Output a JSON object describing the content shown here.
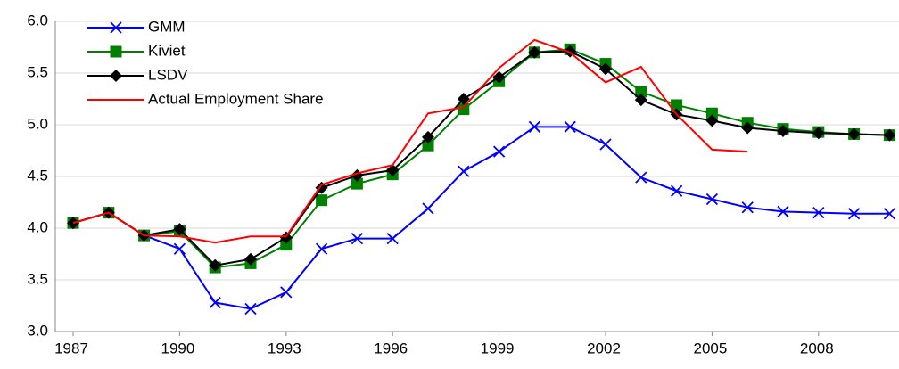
{
  "chart_data": {
    "type": "line",
    "categories": [
      "1987",
      null,
      null,
      "1990",
      null,
      null,
      "1993",
      null,
      null,
      "1996",
      null,
      null,
      "1999",
      null,
      null,
      "2002",
      null,
      null,
      "2005",
      null,
      null,
      "2008",
      null,
      null
    ],
    "series": [
      {
        "name": "GMM",
        "color": "#0000ff",
        "marker": "x",
        "values": [
          4.05,
          4.15,
          3.93,
          3.8,
          3.28,
          3.22,
          3.38,
          3.8,
          3.9,
          3.9,
          4.19,
          4.55,
          4.74,
          4.98,
          4.98,
          4.81,
          4.49,
          4.36,
          4.28,
          4.2,
          4.16,
          4.15,
          4.14,
          4.14
        ]
      },
      {
        "name": "Kiviet",
        "color": "#008000",
        "marker": "square",
        "values": [
          4.05,
          4.15,
          3.93,
          3.97,
          3.62,
          3.66,
          3.84,
          4.27,
          4.43,
          4.52,
          4.8,
          5.15,
          5.42,
          5.7,
          5.73,
          5.59,
          5.32,
          5.19,
          5.11,
          5.02,
          4.96,
          4.93,
          4.91,
          4.9
        ]
      },
      {
        "name": "LSDV",
        "color": "#000000",
        "marker": "diamond",
        "values": [
          4.05,
          4.15,
          3.93,
          3.99,
          3.64,
          3.7,
          3.91,
          4.39,
          4.51,
          4.56,
          4.88,
          5.25,
          5.46,
          5.7,
          5.71,
          5.54,
          5.24,
          5.1,
          5.04,
          4.97,
          4.94,
          4.92,
          4.91,
          4.9
        ]
      },
      {
        "name": "Actual Employment Share",
        "color": "#ff0000",
        "marker": "none",
        "values": [
          4.05,
          4.15,
          3.93,
          3.92,
          3.86,
          3.92,
          3.92,
          4.42,
          4.53,
          4.61,
          5.11,
          5.17,
          5.55,
          5.82,
          5.7,
          5.41,
          5.56,
          5.1,
          4.76,
          4.74,
          null,
          null,
          null,
          null
        ]
      }
    ],
    "ylim": [
      3.0,
      6.0
    ],
    "yticks": [
      {
        "value": 3.0,
        "label": "3.0"
      },
      {
        "value": 3.5,
        "label": "3.5"
      },
      {
        "value": 4.0,
        "label": "4.0"
      },
      {
        "value": 4.5,
        "label": "4.5"
      },
      {
        "value": 5.0,
        "label": "5.0"
      },
      {
        "value": 5.5,
        "label": "5.5"
      },
      {
        "value": 6.0,
        "label": "6.0"
      }
    ],
    "grid": true,
    "legend": "top-left"
  }
}
